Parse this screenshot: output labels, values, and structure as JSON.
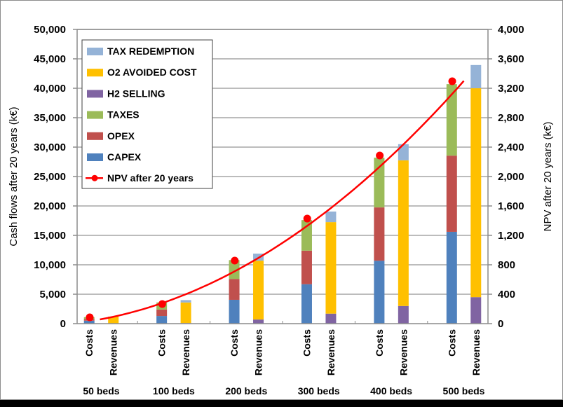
{
  "chart_data": {
    "type": "bar",
    "subtype": "stacked-bar-with-line-secondary-axis",
    "title": "",
    "ylabel": "Cash flows after 20 years (k€)",
    "y2label": "NPV after 20 years (k€)",
    "ylim": [
      0,
      50000
    ],
    "y2lim": [
      0,
      4000
    ],
    "yticks": [
      "0",
      "5,000",
      "10,000",
      "15,000",
      "20,000",
      "25,000",
      "30,000",
      "35,000",
      "40,000",
      "45,000",
      "50,000"
    ],
    "y2ticks": [
      "0",
      "400",
      "800",
      "1,200",
      "1,600",
      "2,000",
      "2,400",
      "2,800",
      "3,200",
      "3,600",
      "4,000"
    ],
    "grid": true,
    "legend_position": "top-left",
    "groups": [
      "50 beds",
      "100 beds",
      "200 beds",
      "300 beds",
      "400 beds",
      "500 beds"
    ],
    "bar_labels": [
      "Costs",
      "Revenues"
    ],
    "cost_series": [
      {
        "name": "CAPEX",
        "color": "#4F81BD",
        "values": [
          500,
          1300,
          4050,
          6700,
          10700,
          15600
        ]
      },
      {
        "name": "OPEX",
        "color": "#C0504D",
        "values": [
          300,
          1100,
          3550,
          5700,
          9050,
          12950
        ]
      },
      {
        "name": "TAXES",
        "color": "#9BBB59",
        "values": [
          300,
          1200,
          3200,
          5200,
          8450,
          12150
        ]
      }
    ],
    "revenue_series": [
      {
        "name": "H2 SELLING",
        "color": "#8064A2",
        "values": [
          50,
          100,
          700,
          1700,
          3000,
          4500
        ]
      },
      {
        "name": "O2 AVOIDED COST",
        "color": "#FFC000",
        "values": [
          1150,
          3500,
          10000,
          15550,
          24750,
          35500
        ]
      },
      {
        "name": "TAX REDEMPTION",
        "color": "#95B3D7",
        "values": [
          0,
          400,
          1200,
          1800,
          2750,
          3950
        ]
      }
    ],
    "line_series": {
      "name": "NPV after 20 years",
      "color": "#FF0000",
      "axis": "secondary",
      "values": [
        86,
        267,
        857,
        1428,
        2286,
        3295
      ],
      "trendline": "polynomial"
    },
    "legend": [
      {
        "name": "TAX REDEMPTION",
        "color": "#95B3D7",
        "kind": "box"
      },
      {
        "name": "O2 AVOIDED COST",
        "color": "#FFC000",
        "kind": "box"
      },
      {
        "name": "H2 SELLING",
        "color": "#8064A2",
        "kind": "box"
      },
      {
        "name": "TAXES",
        "color": "#9BBB59",
        "kind": "box"
      },
      {
        "name": "OPEX",
        "color": "#C0504D",
        "kind": "box"
      },
      {
        "name": "CAPEX",
        "color": "#4F81BD",
        "kind": "box"
      },
      {
        "name": "NPV after 20 years",
        "color": "#FF0000",
        "kind": "line"
      }
    ]
  }
}
